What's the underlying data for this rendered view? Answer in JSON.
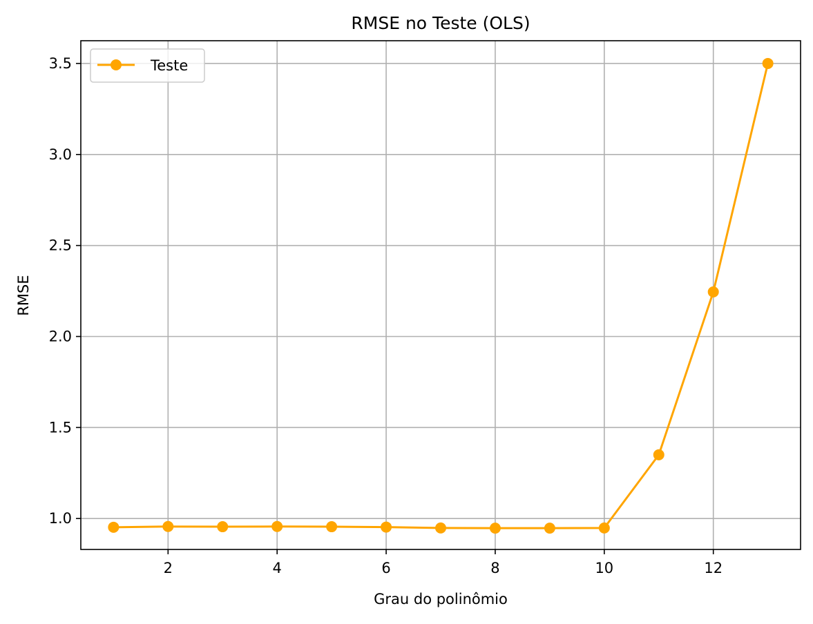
{
  "chart_data": {
    "type": "line",
    "title": "RMSE no Teste (OLS)",
    "xlabel": "Grau do polinômio",
    "ylabel": "RMSE",
    "x": [
      1,
      2,
      3,
      4,
      5,
      6,
      7,
      8,
      9,
      10,
      11,
      12,
      13
    ],
    "series": [
      {
        "name": "Teste",
        "color": "#FFA500",
        "marker": "circle",
        "values": [
          0.952,
          0.956,
          0.955,
          0.956,
          0.955,
          0.953,
          0.948,
          0.947,
          0.947,
          0.948,
          1.35,
          2.245,
          3.5
        ]
      }
    ],
    "xlim": [
      0.4,
      13.6
    ],
    "ylim": [
      0.83,
      3.625
    ],
    "x_ticks": [
      2,
      4,
      6,
      8,
      10,
      12
    ],
    "x_tick_labels": [
      "2",
      "4",
      "6",
      "8",
      "10",
      "12"
    ],
    "y_ticks": [
      1.0,
      1.5,
      2.0,
      2.5,
      3.0,
      3.5
    ],
    "y_tick_labels": [
      "1.0",
      "1.5",
      "2.0",
      "2.5",
      "3.0",
      "3.5"
    ],
    "grid": true,
    "legend_position": "top-left"
  }
}
